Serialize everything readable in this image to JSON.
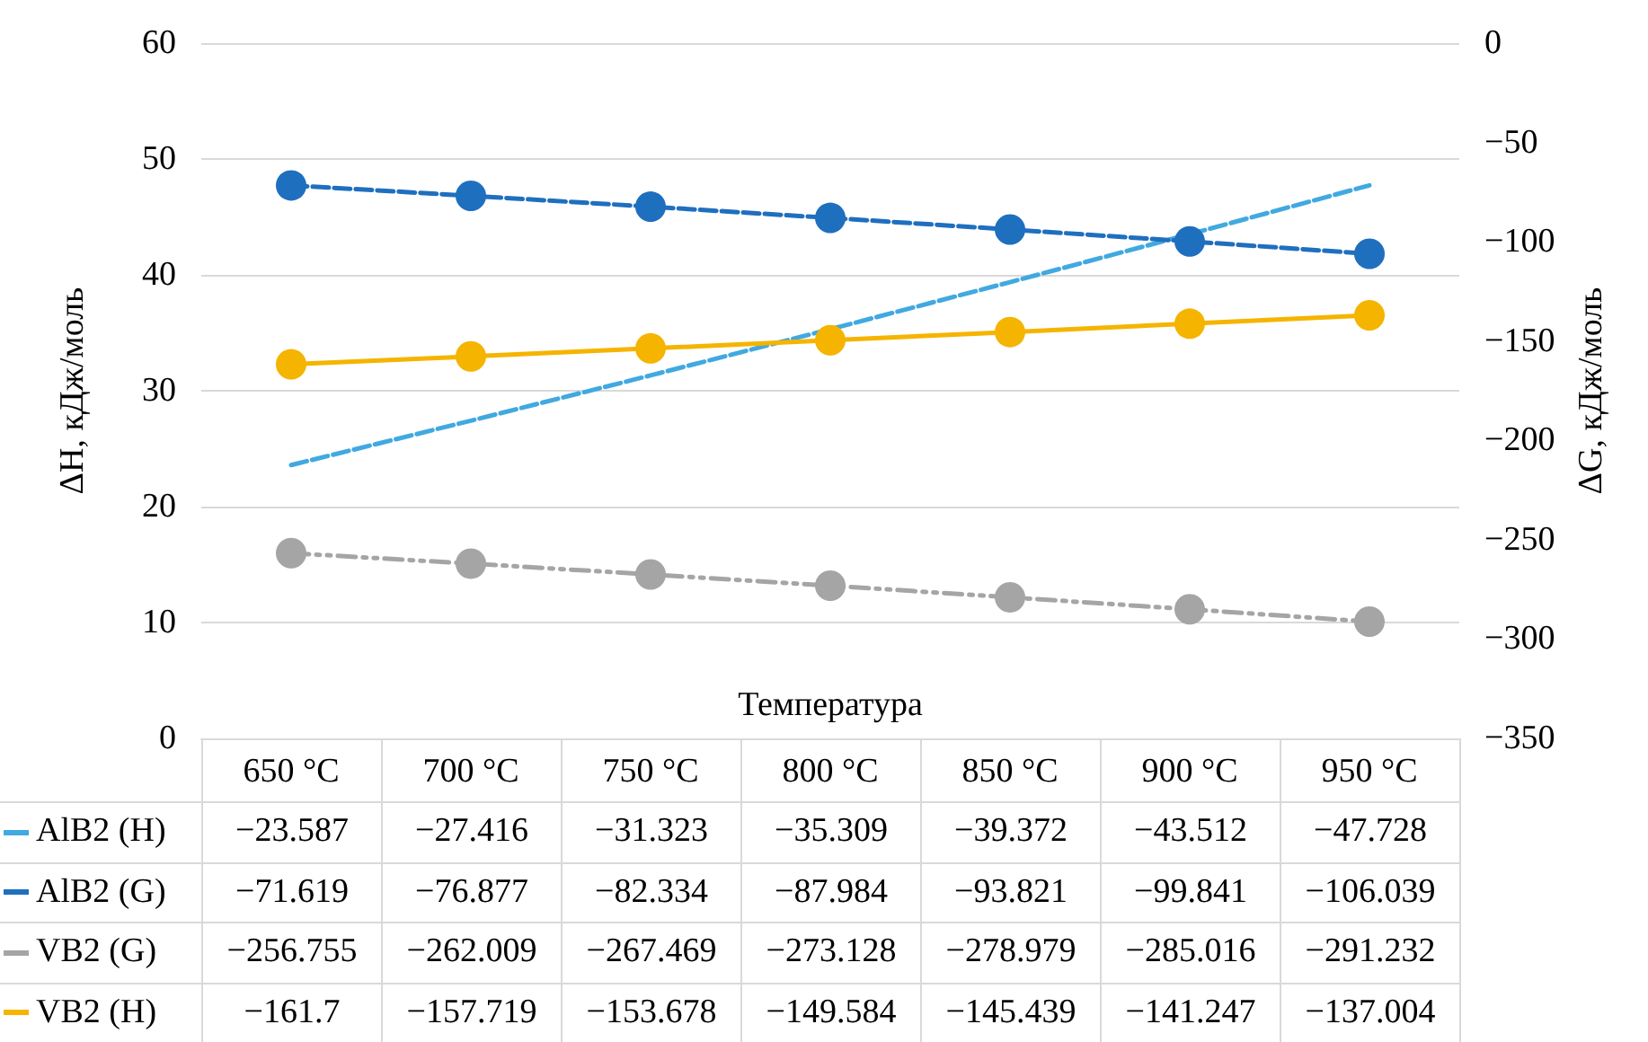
{
  "chart_data": {
    "type": "line",
    "categories": [
      "650 °C",
      "700 °C",
      "750 °C",
      "800 °C",
      "850 °C",
      "900 °C",
      "950 °C"
    ],
    "xlabel": "Температура",
    "ylabel": "ΔH, кДж/моль",
    "y2label": "ΔG, кДж/моль",
    "ylim": [
      0,
      -60
    ],
    "yticks": [
      0,
      {
        "value": -10,
        "label": "10"
      },
      {
        "value": -20,
        "label": "20"
      },
      {
        "value": -30,
        "label": "30"
      },
      {
        "value": -40,
        "label": "40"
      },
      {
        "value": -50,
        "label": "50"
      },
      {
        "value": -60,
        "label": "60"
      }
    ],
    "y2lim": [
      -350,
      0
    ],
    "y2ticks": [
      -350,
      -300,
      -250,
      -200,
      -150,
      -100,
      -50,
      0
    ],
    "grid": "y",
    "data_labels": true,
    "legend": "bottom left",
    "series": [
      {
        "name": "AlB2 (H)",
        "color": "#41a9e0",
        "axis": "y",
        "marker": "none",
        "line_style": "dashed",
        "values": [
          -23.587,
          -27.416,
          -31.323,
          -35.309,
          -39.372,
          -43.512,
          -47.728
        ]
      },
      {
        "name": "AlB2 (G)",
        "color": "#1f6fbf",
        "axis": "y2",
        "marker": "circle",
        "line_style": "dashed",
        "values": [
          -71.619,
          -76.877,
          -82.334,
          -87.984,
          -93.821,
          -99.841,
          -106.039
        ]
      },
      {
        "name": "VB2 (G)",
        "color": "#a5a5a5",
        "axis": "y2",
        "marker": "circle",
        "line_style": "dotted",
        "values": [
          -256.755,
          -262.009,
          -267.469,
          -273.128,
          -278.979,
          -285.016,
          -291.232
        ]
      },
      {
        "name": "VB2 (H)",
        "color": "#f5b400",
        "axis": "y2",
        "marker": "circle",
        "line_style": "solid",
        "values": [
          -161.7,
          -157.719,
          -153.678,
          -149.584,
          -145.439,
          -141.247,
          -137.004
        ]
      }
    ]
  }
}
